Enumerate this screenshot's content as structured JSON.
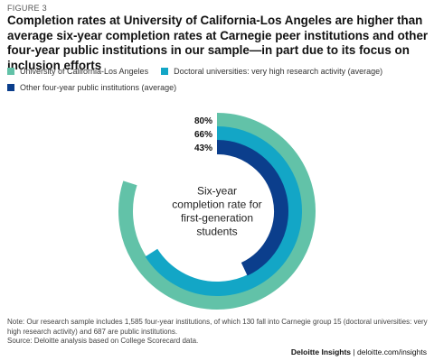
{
  "figure_label": "FIGURE 3",
  "title": "Completion rates at University of California-Los Angeles are higher than average six-year completion rates at Carnegie peer institutions and other four-year public institutions in our sample—in part due to its focus on inclusion efforts",
  "legend": {
    "items": [
      {
        "label": "University of California-Los Angeles",
        "color": "#62C2A8"
      },
      {
        "label": "Doctoral universities: very high research activity (average)",
        "color": "#13A6C6"
      },
      {
        "label": "Other four-year public institutions (average)",
        "color": "#0B3E8C"
      }
    ]
  },
  "chart_data": {
    "type": "radial bar",
    "center_label": [
      "Six-year",
      "completion rate for",
      "first-generation",
      "students"
    ],
    "unit": "%",
    "series": [
      {
        "name": "University of California-Los Angeles",
        "value": 80,
        "label": "80%",
        "color": "#62C2A8"
      },
      {
        "name": "Doctoral universities: very high research activity (average)",
        "value": 66,
        "label": "66%",
        "color": "#13A6C6"
      },
      {
        "name": "Other four-year public institutions (average)",
        "value": 43,
        "label": "43%",
        "color": "#0B3E8C"
      }
    ],
    "max": 100
  },
  "note": "Note: Our research sample includes 1,585 four-year institutions, of which 130 fall into Carnegie group 15 (doctoral universities: very high research activity) and 687 are public institutions.",
  "source": "Source: Deloitte analysis based on College Scorecard data.",
  "footer": {
    "brand": "Deloitte Insights",
    "separator": " | ",
    "url": "deloitte.com/insights"
  }
}
